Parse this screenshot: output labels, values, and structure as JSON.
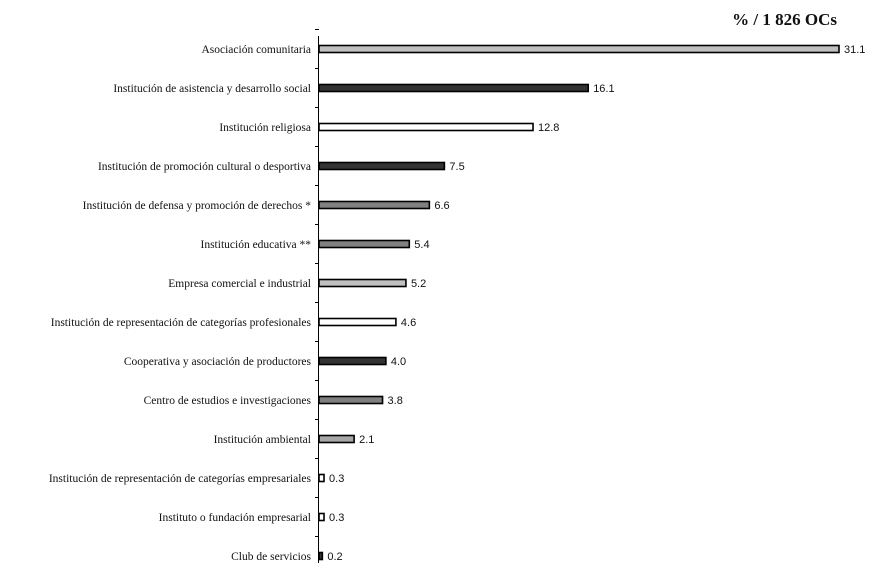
{
  "chart_data": {
    "type": "bar",
    "orientation": "horizontal",
    "unit_label": "% / 1 826 OCs",
    "categories": [
      "Asociación comunitaria",
      "Institución de asistencia y desarrollo social",
      "Institución religiosa",
      "Institución de promoción cultural o desportiva",
      "Institución de defensa y promoción de derechos *",
      "Institución educativa **",
      "Empresa comercial e industrial",
      "Institución de representación de categorías profesionales",
      "Cooperativa y asociación de productores",
      "Centro de estudios e investigaciones",
      "Institución ambiental",
      "Institución de representación de categorías empresariales",
      "Instituto o fundación empresarial",
      "Club de servicios"
    ],
    "values": [
      31.1,
      16.1,
      12.8,
      7.5,
      6.6,
      5.4,
      5.2,
      4.6,
      4.0,
      3.8,
      2.1,
      0.3,
      0.3,
      0.2
    ],
    "value_labels": [
      "31.1",
      "16.1",
      "12.8",
      "7.5",
      "6.6",
      "5.4",
      "5.2",
      "4.6",
      "4.0",
      "3.8",
      "2.1",
      "0.3",
      "0.3",
      "0.2"
    ],
    "bar_colors": [
      "#c0c0c0",
      "#333333",
      "#ffffff",
      "#333333",
      "#808080",
      "#808080",
      "#c0c0c0",
      "#ffffff",
      "#333333",
      "#808080",
      "#a6a6a6",
      "#ffffff",
      "#ffffff",
      "#333333"
    ],
    "xlim": [
      0,
      31.1
    ],
    "grid": false,
    "legend": "none"
  }
}
